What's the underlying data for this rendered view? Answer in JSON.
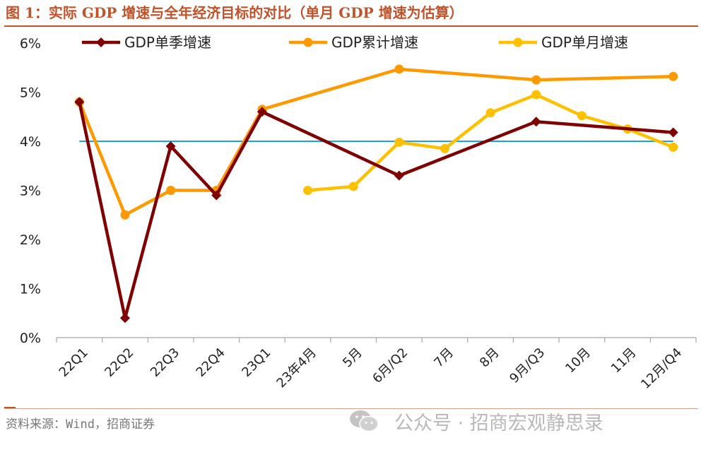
{
  "figure": {
    "title": "图 1：实际 GDP 增速与全年经济目标的对比（单月 GDP 增速为估算）",
    "source": "资料来源：Wind，招商证券"
  },
  "watermark": {
    "text": "公众号 · 招商宏观静思录",
    "icon": "wechat-icon"
  },
  "colors": {
    "title": "#c0532a",
    "quarterly": "#7f0000",
    "cumulative": "#ff9900",
    "monthly": "#ffc000",
    "target": "#1fa3dc"
  },
  "chart_data": {
    "type": "line",
    "title": "",
    "xlabel": "",
    "ylabel": "",
    "ylim": [
      0,
      6
    ],
    "yticks": [
      "0%",
      "1%",
      "2%",
      "3%",
      "4%",
      "5%",
      "6%"
    ],
    "categories": [
      "22Q1",
      "22Q2",
      "22Q3",
      "22Q4",
      "23Q1",
      "23年4月",
      "5月",
      "6月/Q2",
      "7月",
      "8月",
      "9月/Q3",
      "10月",
      "11月",
      "12月/Q4"
    ],
    "series": [
      {
        "name": "GDP单季增速",
        "marker": "diamond",
        "values": [
          4.8,
          0.4,
          3.9,
          2.9,
          4.6,
          null,
          null,
          3.3,
          null,
          null,
          4.4,
          null,
          null,
          4.18
        ]
      },
      {
        "name": "GDP累计增速",
        "marker": "circle",
        "values": [
          4.8,
          2.5,
          3.0,
          3.0,
          4.65,
          null,
          null,
          5.47,
          null,
          null,
          5.25,
          null,
          null,
          5.32
        ]
      },
      {
        "name": "GDP单月增速",
        "marker": "circle",
        "values": [
          null,
          null,
          null,
          null,
          null,
          3.0,
          3.08,
          3.98,
          3.85,
          4.58,
          4.95,
          4.52,
          4.25,
          3.88
        ]
      }
    ],
    "reference_line": {
      "value": 4.0
    },
    "legend_position": "top"
  }
}
